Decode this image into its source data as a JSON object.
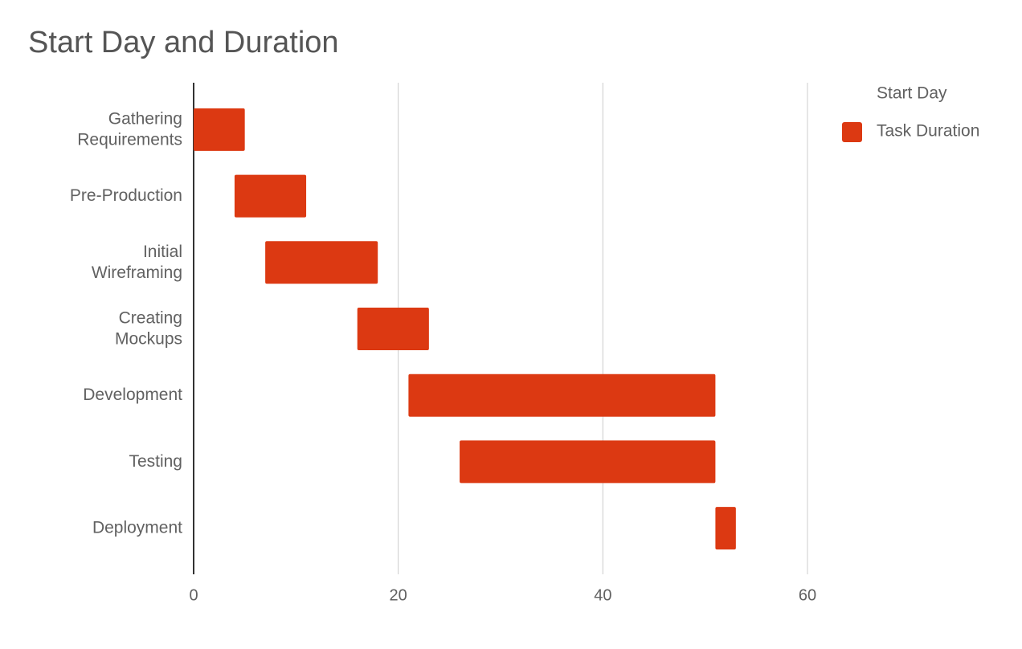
{
  "chart_data": {
    "type": "stacked-bar-horizontal",
    "title": "Start Day and Duration",
    "categories": [
      "Gathering Requirements",
      "Pre-Production",
      "Initial Wireframing",
      "Creating Mockups",
      "Development",
      "Testing",
      "Deployment"
    ],
    "series": [
      {
        "name": "Start Day",
        "color": "none",
        "values": [
          0,
          4,
          7,
          16,
          21,
          26,
          51
        ]
      },
      {
        "name": "Task Duration",
        "color": "#dc3912",
        "values": [
          5,
          7,
          11,
          7,
          30,
          25,
          2
        ]
      }
    ],
    "xlim": [
      0,
      60
    ],
    "xticks": [
      0,
      20,
      40,
      60
    ],
    "grid": true,
    "legend": "right"
  }
}
